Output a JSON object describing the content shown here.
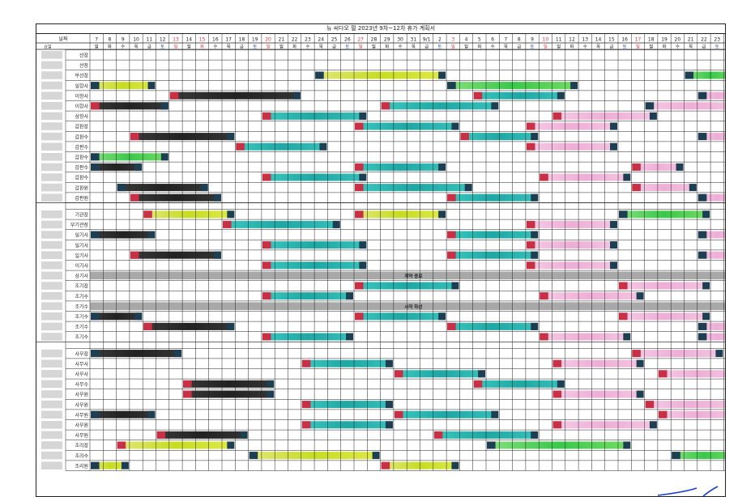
{
  "title": "뉴 씨다오 펄 2023년 9차~12차 휴가 계획서",
  "header": {
    "date_label": "날짜",
    "weekday_label": "요일"
  },
  "days": [
    "7",
    "8",
    "9",
    "10",
    "11",
    "12",
    "13",
    "14",
    "15",
    "16",
    "17",
    "18",
    "19",
    "20",
    "21",
    "22",
    "23",
    "24",
    "25",
    "26",
    "27",
    "28",
    "29",
    "30",
    "31",
    "9/1",
    "2",
    "3",
    "4",
    "5",
    "6",
    "7",
    "8",
    "9",
    "10",
    "11",
    "12",
    "13",
    "14",
    "15",
    "16",
    "17",
    "18",
    "19",
    "20",
    "21",
    "22",
    "23",
    "24"
  ],
  "weekdays": [
    "월",
    "화",
    "수",
    "목",
    "금",
    "토",
    "일",
    "월",
    "화",
    "수",
    "목",
    "금",
    "토",
    "일",
    "월",
    "화",
    "수",
    "목",
    "금",
    "토",
    "일",
    "월",
    "화",
    "수",
    "목",
    "금",
    "토",
    "일",
    "월",
    "화",
    "수",
    "목",
    "금",
    "토",
    "일",
    "월",
    "화",
    "수",
    "목",
    "금",
    "토",
    "일",
    "월",
    "화",
    "수",
    "목",
    "금",
    "토",
    "일"
  ],
  "red_days": [
    6,
    8,
    13,
    20,
    27,
    34,
    41
  ],
  "colors": {
    "grid": "#222222",
    "black": "#2a2a2a",
    "teal": "#2bb5b0",
    "yellow": "#cfe02a",
    "green": "#5fd65a",
    "pink": "#f2b8dc",
    "red_mark": "#c93045",
    "dark_mark": "#1e3f52",
    "sep": "#a8a8a8",
    "red_text": "#d8323c",
    "blue_text": "#2a4fb8",
    "pen": "#1a3fd0"
  },
  "groups": [
    {
      "rows": [
        {
          "role": "선장",
          "bars": []
        },
        {
          "role": "선장",
          "bars": []
        },
        {
          "role": "부선장",
          "bars": [
            {
              "from": 17,
              "to": 26,
              "color": "yellow",
              "mark": "dark"
            },
            {
              "from": 45,
              "to": 48,
              "color": "green",
              "mark": "dark"
            }
          ]
        },
        {
          "role": "일항사",
          "bars": [
            {
              "from": 0,
              "to": 4,
              "color": "yellow",
              "mark": "dark"
            },
            {
              "from": 27,
              "to": 36,
              "color": "green",
              "mark": "dark"
            }
          ]
        },
        {
          "role": "이항사",
          "bars": [
            {
              "from": 6,
              "to": 15,
              "color": "black",
              "mark": "red"
            },
            {
              "from": 29,
              "to": 35,
              "color": "teal",
              "mark": "red"
            },
            {
              "from": 46,
              "to": 48,
              "color": "pink",
              "mark": "dark"
            }
          ]
        },
        {
          "role": "이항사",
          "bars": [
            {
              "from": 0,
              "to": 5,
              "color": "black",
              "mark": "red"
            },
            {
              "from": 22,
              "to": 30,
              "color": "teal",
              "mark": "red"
            },
            {
              "from": 42,
              "to": 48,
              "color": "pink",
              "mark": "dark"
            }
          ]
        },
        {
          "role": "삼항사",
          "bars": [
            {
              "from": 13,
              "to": 20,
              "color": "teal",
              "mark": "red"
            },
            {
              "from": 35,
              "to": 42,
              "color": "pink",
              "mark": "red"
            }
          ]
        },
        {
          "role": "갑판장",
          "bars": [
            {
              "from": 20,
              "to": 27,
              "color": "teal",
              "mark": "red"
            },
            {
              "from": 33,
              "to": 39,
              "color": "pink",
              "mark": "red"
            }
          ]
        },
        {
          "role": "갑판수",
          "bars": [
            {
              "from": 3,
              "to": 10,
              "color": "black",
              "mark": "red"
            },
            {
              "from": 28,
              "to": 33,
              "color": "teal",
              "mark": "red"
            },
            {
              "from": 46,
              "to": 48,
              "color": "pink",
              "mark": "dark"
            }
          ]
        },
        {
          "role": "갑판수",
          "bars": [
            {
              "from": 11,
              "to": 17,
              "color": "teal",
              "mark": "red"
            },
            {
              "from": 33,
              "to": 39,
              "color": "pink",
              "mark": "red"
            }
          ]
        },
        {
          "role": "갑판수",
          "bars": [
            {
              "from": 0,
              "to": 5,
              "color": "green",
              "mark": "dark"
            }
          ]
        },
        {
          "role": "갑판수",
          "bars": [
            {
              "from": 0,
              "to": 3,
              "color": "black",
              "mark": "dark"
            },
            {
              "from": 20,
              "to": 26,
              "color": "teal",
              "mark": "red"
            },
            {
              "from": 41,
              "to": 44,
              "color": "pink",
              "mark": "red"
            }
          ]
        },
        {
          "role": "갑판수",
          "bars": [
            {
              "from": 13,
              "to": 20,
              "color": "teal",
              "mark": "red"
            },
            {
              "from": 34,
              "to": 40,
              "color": "pink",
              "mark": "red"
            }
          ]
        },
        {
          "role": "갑판원",
          "bars": [
            {
              "from": 2,
              "to": 8,
              "color": "black",
              "mark": "dark"
            },
            {
              "from": 20,
              "to": 28,
              "color": "teal",
              "mark": "red"
            },
            {
              "from": 41,
              "to": 45,
              "color": "pink",
              "mark": "red"
            }
          ]
        },
        {
          "role": "갑판원",
          "bars": [
            {
              "from": 3,
              "to": 9,
              "color": "black",
              "mark": "red"
            },
            {
              "from": 27,
              "to": 33,
              "color": "teal",
              "mark": "red"
            },
            {
              "from": 46,
              "to": 48,
              "color": "pink",
              "mark": "dark"
            }
          ]
        }
      ]
    },
    {
      "rows": [
        {
          "role": "기관장",
          "bars": [
            {
              "from": 4,
              "to": 10,
              "color": "yellow",
              "mark": "red"
            },
            {
              "from": 20,
              "to": 26,
              "color": "yellow",
              "mark": "red"
            },
            {
              "from": 40,
              "to": 46,
              "color": "green",
              "mark": "dark"
            }
          ]
        },
        {
          "role": "부기관장",
          "bars": [
            {
              "from": 10,
              "to": 18,
              "color": "teal",
              "mark": "red"
            },
            {
              "from": 33,
              "to": 39,
              "color": "pink",
              "mark": "red"
            }
          ]
        },
        {
          "role": "일기사",
          "bars": [
            {
              "from": 0,
              "to": 4,
              "color": "black",
              "mark": "dark"
            },
            {
              "from": 27,
              "to": 33,
              "color": "teal",
              "mark": "red"
            },
            {
              "from": 46,
              "to": 48,
              "color": "pink",
              "mark": "dark"
            }
          ]
        },
        {
          "role": "일기사",
          "bars": [
            {
              "from": 13,
              "to": 20,
              "color": "teal",
              "mark": "red"
            },
            {
              "from": 33,
              "to": 39,
              "color": "pink",
              "mark": "red"
            }
          ]
        },
        {
          "role": "일기사",
          "bars": [
            {
              "from": 3,
              "to": 9,
              "color": "black",
              "mark": "red"
            },
            {
              "from": 27,
              "to": 33,
              "color": "teal",
              "mark": "red"
            },
            {
              "from": 46,
              "to": 48,
              "color": "pink",
              "mark": "dark"
            }
          ]
        },
        {
          "role": "이기사",
          "bars": [
            {
              "from": 13,
              "to": 20,
              "color": "teal",
              "mark": "red"
            },
            {
              "from": 33,
              "to": 39,
              "color": "pink",
              "mark": "red"
            }
          ]
        },
        {
          "role": "삼기사",
          "sep": "계약 종료",
          "bars": []
        },
        {
          "role": "조기장",
          "bars": [
            {
              "from": 20,
              "to": 27,
              "color": "teal",
              "mark": "red"
            },
            {
              "from": 40,
              "to": 46,
              "color": "pink",
              "mark": "red"
            }
          ]
        },
        {
          "role": "조기수",
          "bars": [
            {
              "from": 13,
              "to": 19,
              "color": "teal",
              "mark": "red"
            },
            {
              "from": 34,
              "to": 41,
              "color": "pink",
              "mark": "red"
            }
          ]
        },
        {
          "role": "조기수",
          "sep": "시작 하선",
          "bars": []
        },
        {
          "role": "조기수",
          "bars": [
            {
              "from": 0,
              "to": 3,
              "color": "black",
              "mark": "dark"
            },
            {
              "from": 20,
              "to": 26,
              "color": "teal",
              "mark": "red"
            },
            {
              "from": 40,
              "to": 46,
              "color": "pink",
              "mark": "red"
            }
          ]
        },
        {
          "role": "조기수",
          "bars": [
            {
              "from": 4,
              "to": 10,
              "color": "black",
              "mark": "red"
            },
            {
              "from": 27,
              "to": 33,
              "color": "teal",
              "mark": "red"
            },
            {
              "from": 46,
              "to": 48,
              "color": "pink",
              "mark": "dark"
            }
          ]
        },
        {
          "role": "조기수",
          "bars": [
            {
              "from": 13,
              "to": 19,
              "color": "teal",
              "mark": "red"
            },
            {
              "from": 34,
              "to": 40,
              "color": "pink",
              "mark": "red"
            },
            {
              "from": 46,
              "to": 48,
              "color": "pink",
              "mark": "dark"
            }
          ]
        }
      ]
    },
    {
      "rows": [
        {
          "role": "사무장",
          "bars": [
            {
              "from": 0,
              "to": 6,
              "color": "black",
              "mark": "dark"
            },
            {
              "from": 41,
              "to": 47,
              "color": "pink",
              "mark": "red"
            }
          ]
        },
        {
          "role": "사무사",
          "bars": [
            {
              "from": 16,
              "to": 22,
              "color": "teal",
              "mark": "red"
            },
            {
              "from": 35,
              "to": 41,
              "color": "pink",
              "mark": "red"
            }
          ]
        },
        {
          "role": "사무사",
          "bars": [
            {
              "from": 23,
              "to": 29,
              "color": "teal",
              "mark": "red"
            },
            {
              "from": 43,
              "to": 48,
              "color": "pink",
              "mark": "red"
            }
          ]
        },
        {
          "role": "사무수",
          "bars": [
            {
              "from": 7,
              "to": 13,
              "color": "black",
              "mark": "red"
            },
            {
              "from": 29,
              "to": 35,
              "color": "teal",
              "mark": "red"
            }
          ]
        },
        {
          "role": "사무원",
          "bars": [
            {
              "from": 7,
              "to": 13,
              "color": "black",
              "mark": "red"
            },
            {
              "from": 35,
              "to": 41,
              "color": "pink",
              "mark": "red"
            }
          ]
        },
        {
          "role": "사무원",
          "bars": [
            {
              "from": 16,
              "to": 22,
              "color": "teal",
              "mark": "red"
            },
            {
              "from": 42,
              "to": 48,
              "color": "pink",
              "mark": "red"
            }
          ]
        },
        {
          "role": "사무원",
          "bars": [
            {
              "from": 0,
              "to": 4,
              "color": "black",
              "mark": "dark"
            },
            {
              "from": 23,
              "to": 30,
              "color": "teal",
              "mark": "red"
            },
            {
              "from": 43,
              "to": 48,
              "color": "pink",
              "mark": "red"
            }
          ]
        },
        {
          "role": "사무원",
          "bars": [
            {
              "from": 16,
              "to": 22,
              "color": "teal",
              "mark": "red"
            },
            {
              "from": 35,
              "to": 42,
              "color": "pink",
              "mark": "red"
            }
          ]
        },
        {
          "role": "사무원",
          "bars": [
            {
              "from": 5,
              "to": 11,
              "color": "black",
              "mark": "red"
            },
            {
              "from": 26,
              "to": 33,
              "color": "teal",
              "mark": "red"
            }
          ]
        },
        {
          "role": "조리장",
          "bars": [
            {
              "from": 2,
              "to": 10,
              "color": "yellow",
              "mark": "red"
            },
            {
              "from": 30,
              "to": 40,
              "color": "green",
              "mark": "dark"
            }
          ]
        },
        {
          "role": "조리수",
          "bars": [
            {
              "from": 12,
              "to": 21,
              "color": "yellow",
              "mark": "dark"
            },
            {
              "from": 44,
              "to": 48,
              "color": "green",
              "mark": "dark"
            }
          ]
        },
        {
          "role": "조리원",
          "bars": [
            {
              "from": 0,
              "to": 2,
              "color": "yellow",
              "mark": "dark"
            },
            {
              "from": 22,
              "to": 27,
              "color": "yellow",
              "mark": "red"
            }
          ]
        }
      ]
    }
  ]
}
